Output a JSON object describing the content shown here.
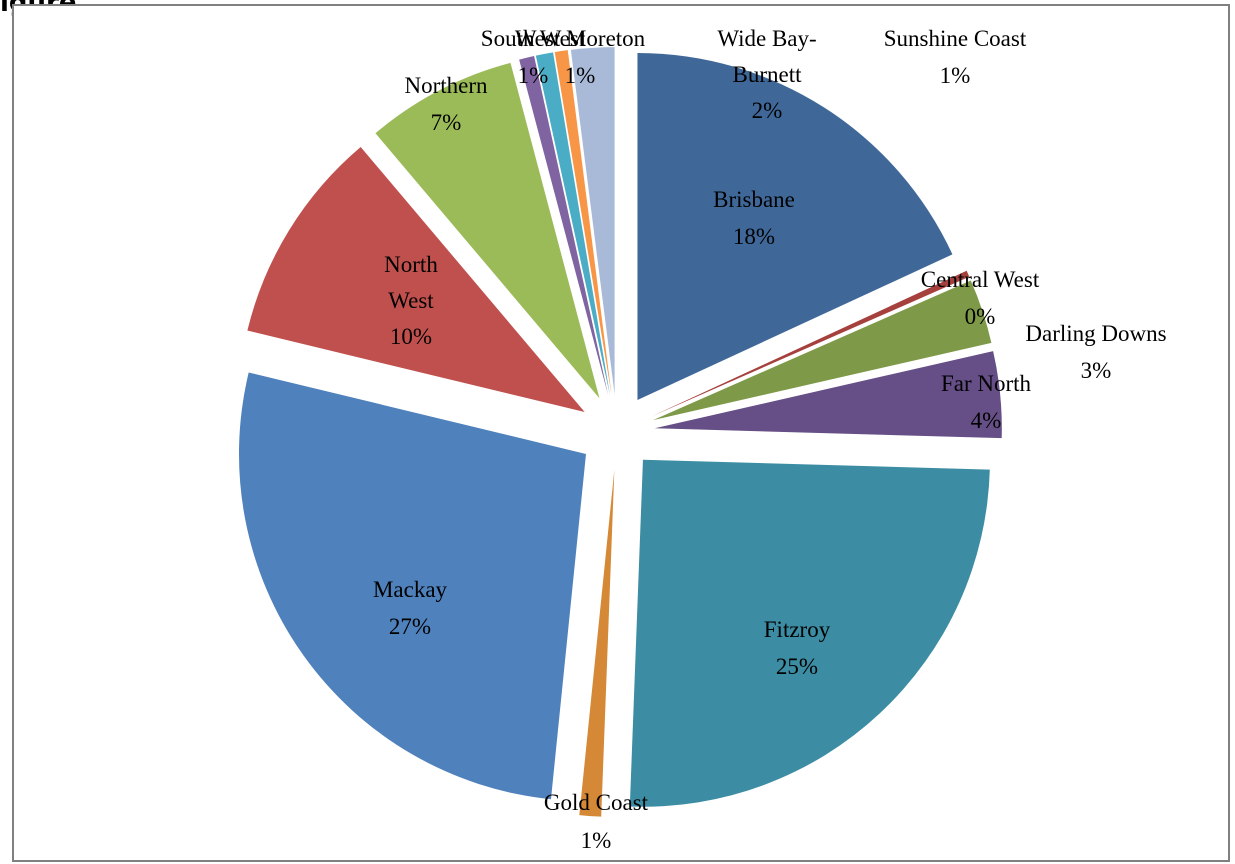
{
  "heading_fragment": "igure",
  "chart_data": {
    "type": "pie",
    "exploded": true,
    "slices": [
      {
        "label": "Brisbane",
        "value": 18,
        "pct_label": "18%",
        "color": "#3F6899",
        "label_inside": true
      },
      {
        "label": "Central West",
        "value": 0.3,
        "pct_label": "0%",
        "color": "#A5403D",
        "label_inside": false
      },
      {
        "label": "Darling Downs",
        "value": 3,
        "pct_label": "3%",
        "color": "#7E9A48",
        "label_inside": false
      },
      {
        "label": "Far North",
        "value": 4,
        "pct_label": "4%",
        "color": "#664F86",
        "label_inside": false
      },
      {
        "label": "Fitzroy",
        "value": 25,
        "pct_label": "25%",
        "color": "#3C8DA3",
        "label_inside": true
      },
      {
        "label": "Gold Coast",
        "value": 1,
        "pct_label": "1%",
        "color": "#D58835",
        "label_inside": false
      },
      {
        "label": "Mackay",
        "value": 27,
        "pct_label": "27%",
        "color": "#4F81BD",
        "label_inside": true
      },
      {
        "label": "North West",
        "value": 10,
        "pct_label": "10%",
        "color": "#C0504D",
        "label_inside": true
      },
      {
        "label": "Northern",
        "value": 7,
        "pct_label": "7%",
        "color": "#9BBB59",
        "label_inside": false
      },
      {
        "label": "South West",
        "value": 0.7,
        "pct_label": "1%",
        "color": "#8064A2",
        "label_inside": false
      },
      {
        "label": "West Moreton",
        "value": 0.8,
        "pct_label": "1%",
        "color": "#4BACC6",
        "label_inside": false
      },
      {
        "label": "Sunshine Coast",
        "value": 0.6,
        "pct_label": "1%",
        "color": "#F79646",
        "label_inside": false
      },
      {
        "label": "Wide Bay-Burnett",
        "value": 2,
        "pct_label": "2%",
        "color": "#A9BAD9",
        "label_inside": false
      }
    ]
  }
}
